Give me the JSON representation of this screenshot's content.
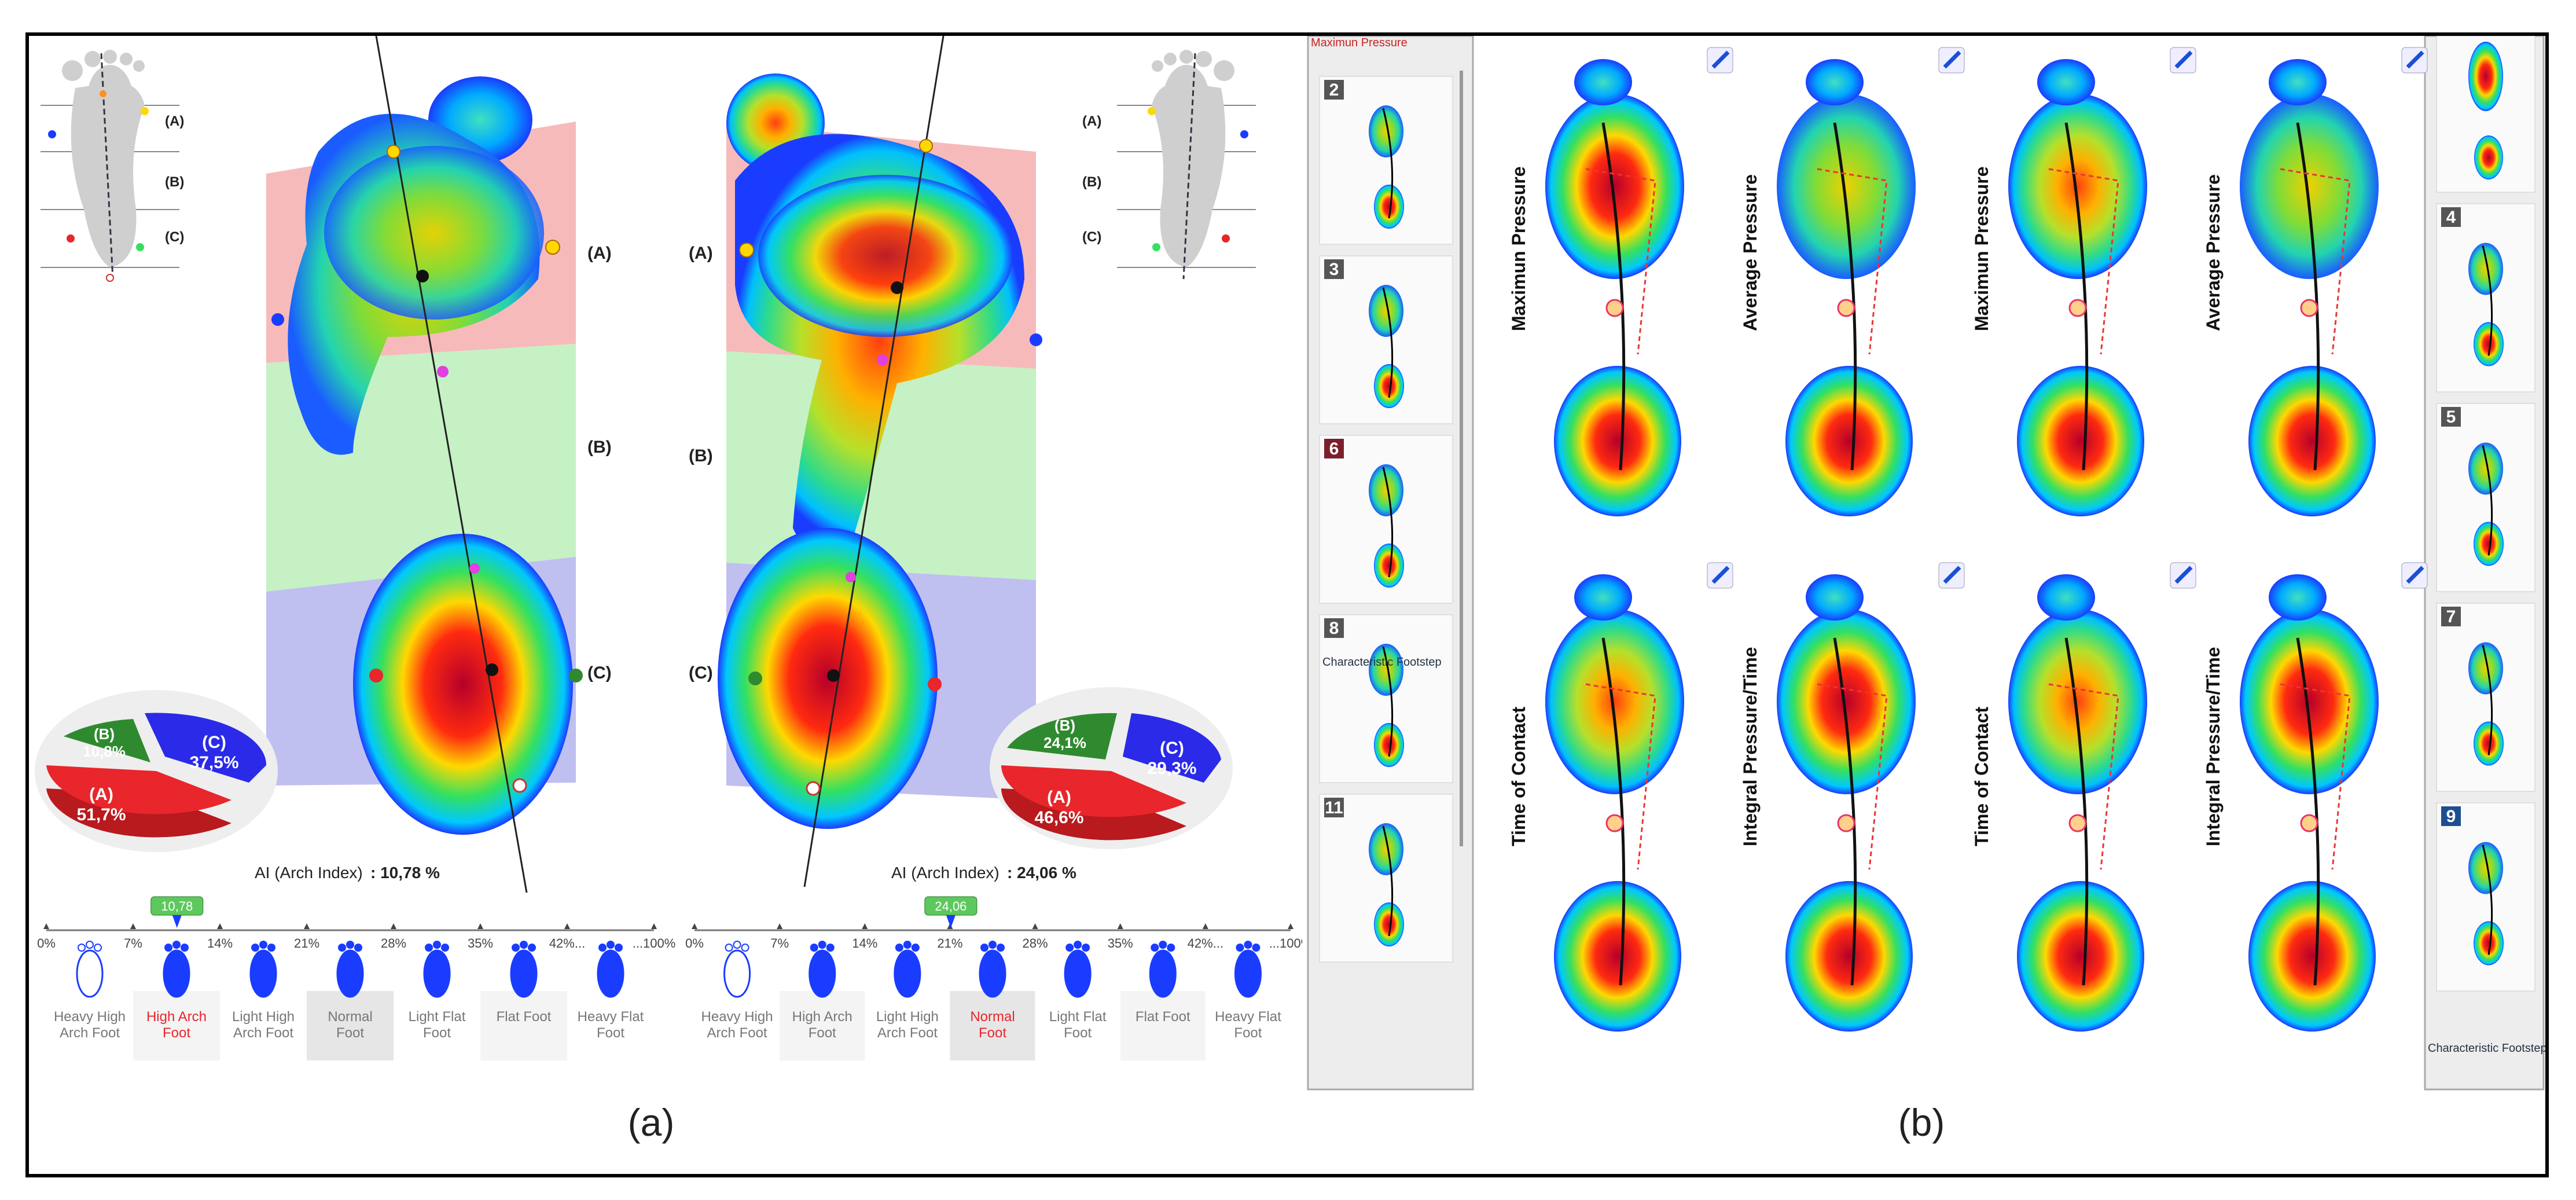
{
  "panel_a": {
    "label": "(a)",
    "left_foot": {
      "zones": {
        "a": "(A)",
        "b": "(B)",
        "c": "(C)"
      },
      "pie": {
        "a_label": "(A)",
        "a_value": "51,7%",
        "b_label": "(B)",
        "b_value": "10,8%",
        "c_label": "(C)",
        "c_value": "37,5%"
      },
      "ai_label": "AI (Arch Index)",
      "ai_value": ": 10,78 %",
      "marker_value": "10,78"
    },
    "right_foot": {
      "zones": {
        "a": "(A)",
        "b": "(B)",
        "c": "(C)"
      },
      "pie": {
        "a_label": "(A)",
        "a_value": "46,6%",
        "b_label": "(B)",
        "b_value": "24,1%",
        "c_label": "(C)",
        "c_value": "29,3%"
      },
      "ai_label": "AI (Arch Index)",
      "ai_value": ": 24,06 %",
      "marker_value": "24,06"
    },
    "scale_ticks": [
      "0%",
      "7%",
      "14%",
      "21%",
      "28%",
      "35%",
      "42%...",
      "...100%"
    ],
    "categories_left": [
      {
        "line1": "Heavy High",
        "line2": "Arch Foot"
      },
      {
        "line1": "High Arch",
        "line2": "Foot"
      },
      {
        "line1": "Light High",
        "line2": "Arch Foot"
      },
      {
        "line1": "Normal",
        "line2": "Foot"
      },
      {
        "line1": "Light Flat",
        "line2": "Foot"
      },
      {
        "line1": "Flat Foot",
        "line2": ""
      },
      {
        "line1": "Heavy Flat",
        "line2": "Foot"
      }
    ],
    "categories_right": [
      {
        "line1": "Heavy High",
        "line2": "Arch Foot"
      },
      {
        "line1": "High Arch",
        "line2": "Foot"
      },
      {
        "line1": "Light High",
        "line2": "Arch Foot"
      },
      {
        "line1": "Normal",
        "line2": "Foot"
      },
      {
        "line1": "Light Flat",
        "line2": "Foot"
      },
      {
        "line1": "Flat Foot",
        "line2": ""
      },
      {
        "line1": "Heavy Flat",
        "line2": "Foot"
      }
    ],
    "highlight_left": 1,
    "highlight_right": 3,
    "highlight_color": "#e8262b"
  },
  "panel_b": {
    "label": "(b)",
    "tab_label": "Maximun Pressure",
    "left_strip": {
      "items": [
        "2",
        "3",
        "6",
        "8",
        "11"
      ],
      "caption": "Characteristic Footstep"
    },
    "right_strip": {
      "items": [
        "4",
        "5",
        "7",
        "9"
      ],
      "caption": "Characteristic Footstep"
    },
    "map_titles_top": [
      "Maximun Pressure",
      "Average Pressure",
      "Maximun Pressure",
      "Average Pressure"
    ],
    "map_titles_bottom": [
      "Time of Contact",
      "Integral Pressure/Time",
      "Time of Contact",
      "Integral Pressure/Time"
    ]
  },
  "colors": {
    "zone_a": "#f6b3b3",
    "zone_b": "#bff0bf",
    "zone_c": "#b8b8ee",
    "pie_a": "#e8262b",
    "pie_b": "#2f8a2f",
    "pie_c": "#2a2ae8",
    "pressure_high": "#b5002a",
    "pressure_low": "#1a3cff"
  }
}
